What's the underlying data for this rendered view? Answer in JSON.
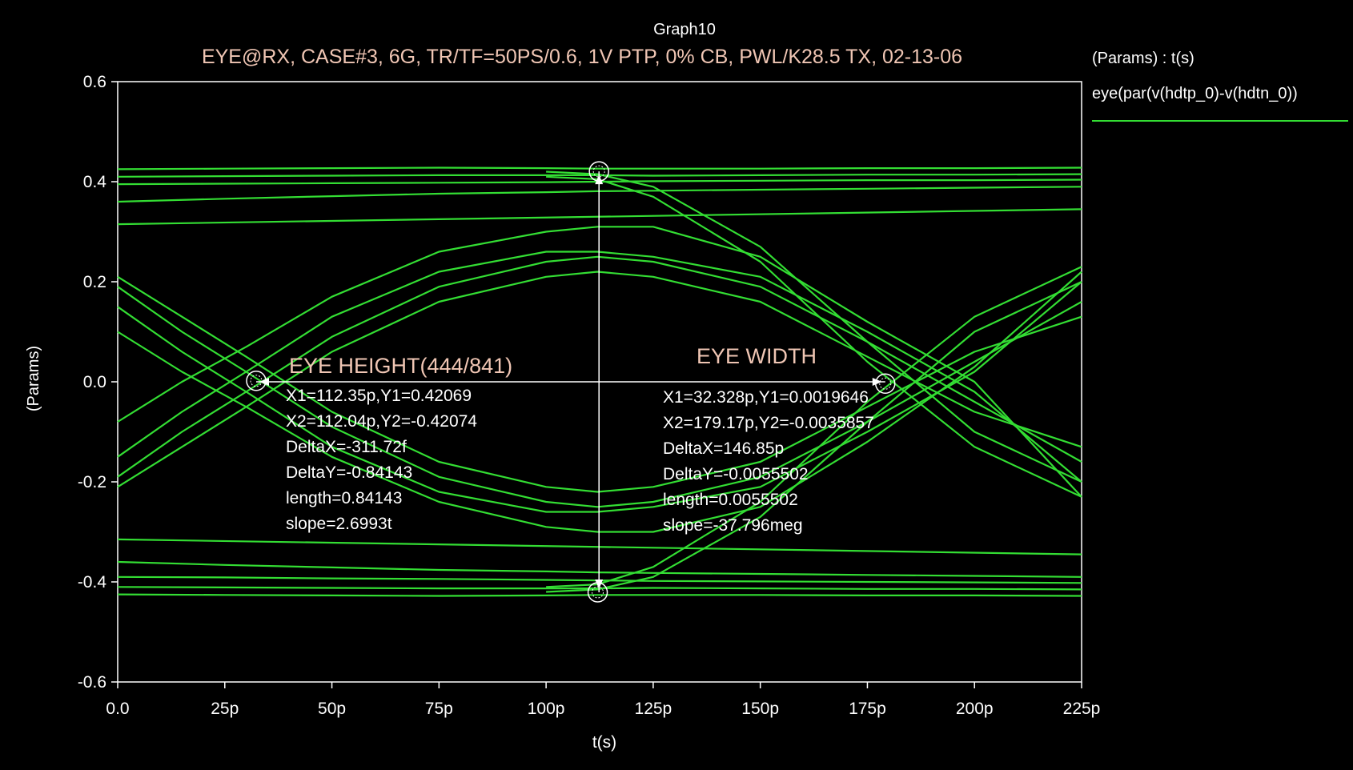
{
  "window": {
    "graph_name": "Graph10"
  },
  "chart_data": {
    "type": "line",
    "title": "EYE@RX, CASE#3, 6G, TR/TF=50PS/0.6, 1V PTP, 0% CB, PWL/K28.5 TX, 02-13-06",
    "xlabel": "t(s)",
    "ylabel": "(Params)",
    "xlim": [
      0,
      225
    ],
    "ylim": [
      -0.6,
      0.6
    ],
    "x_unit": "ps",
    "x_ticks": [
      {
        "value": 0,
        "label": "0.0"
      },
      {
        "value": 25,
        "label": "25p"
      },
      {
        "value": 50,
        "label": "50p"
      },
      {
        "value": 75,
        "label": "75p"
      },
      {
        "value": 100,
        "label": "100p"
      },
      {
        "value": 125,
        "label": "125p"
      },
      {
        "value": 150,
        "label": "150p"
      },
      {
        "value": 175,
        "label": "175p"
      },
      {
        "value": 200,
        "label": "200p"
      },
      {
        "value": 225,
        "label": "225p"
      }
    ],
    "y_ticks": [
      {
        "value": 0.6,
        "label": "0.6"
      },
      {
        "value": 0.4,
        "label": "0.4"
      },
      {
        "value": 0.2,
        "label": "0.2"
      },
      {
        "value": 0.0,
        "label": "0.0"
      },
      {
        "value": -0.2,
        "label": "-0.2"
      },
      {
        "value": -0.4,
        "label": "-0.4"
      },
      {
        "value": -0.6,
        "label": "-0.6"
      }
    ],
    "legend": {
      "header": "(Params) : t(s)",
      "entries": [
        {
          "name": "eye(par(v(hdtp_0)-v(hdtn_0))",
          "color": "#33dd33"
        }
      ],
      "placement": "right"
    },
    "trace_color": "#33dd33",
    "series": [
      {
        "x": [
          0,
          25,
          50,
          75,
          100,
          112,
          125,
          150,
          175,
          200,
          225
        ],
        "y": [
          0.425,
          0.426,
          0.427,
          0.428,
          0.427,
          0.426,
          0.426,
          0.426,
          0.427,
          0.427,
          0.428
        ]
      },
      {
        "x": [
          0,
          25,
          50,
          75,
          100,
          112,
          125,
          150,
          175,
          200,
          225
        ],
        "y": [
          0.41,
          0.411,
          0.412,
          0.413,
          0.413,
          0.413,
          0.412,
          0.413,
          0.414,
          0.414,
          0.415
        ]
      },
      {
        "x": [
          0,
          25,
          50,
          75,
          100,
          112,
          125,
          150,
          175,
          200,
          225
        ],
        "y": [
          0.395,
          0.396,
          0.397,
          0.398,
          0.399,
          0.4,
          0.401,
          0.402,
          0.403,
          0.403,
          0.404
        ]
      },
      {
        "x": [
          0,
          25,
          50,
          75,
          100,
          112,
          125,
          150,
          175,
          200,
          225
        ],
        "y": [
          0.36,
          0.366,
          0.371,
          0.376,
          0.379,
          0.381,
          0.382,
          0.384,
          0.386,
          0.388,
          0.39
        ]
      },
      {
        "x": [
          0,
          225
        ],
        "y": [
          0.315,
          0.345
        ]
      },
      {
        "x": [
          0,
          225
        ],
        "y": [
          -0.315,
          -0.345
        ]
      },
      {
        "x": [
          0,
          25,
          50,
          75,
          100,
          112,
          125,
          150,
          175,
          200,
          225
        ],
        "y": [
          -0.36,
          -0.366,
          -0.371,
          -0.376,
          -0.379,
          -0.381,
          -0.382,
          -0.384,
          -0.386,
          -0.388,
          -0.39
        ]
      },
      {
        "x": [
          0,
          25,
          50,
          75,
          100,
          112,
          125,
          150,
          175,
          200,
          225
        ],
        "y": [
          -0.39,
          -0.391,
          -0.393,
          -0.394,
          -0.396,
          -0.397,
          -0.398,
          -0.399,
          -0.4,
          -0.401,
          -0.402
        ]
      },
      {
        "x": [
          0,
          25,
          50,
          75,
          100,
          112,
          125,
          150,
          175,
          200,
          225
        ],
        "y": [
          -0.41,
          -0.411,
          -0.412,
          -0.413,
          -0.413,
          -0.413,
          -0.412,
          -0.413,
          -0.414,
          -0.414,
          -0.415
        ]
      },
      {
        "x": [
          0,
          25,
          50,
          75,
          100,
          112,
          125,
          150,
          175,
          200,
          225
        ],
        "y": [
          -0.425,
          -0.426,
          -0.427,
          -0.428,
          -0.427,
          -0.426,
          -0.426,
          -0.426,
          -0.427,
          -0.427,
          -0.428
        ]
      },
      {
        "x": [
          0,
          15,
          30,
          50,
          75,
          100,
          112,
          125,
          150,
          175,
          200,
          225
        ],
        "y": [
          -0.21,
          -0.13,
          -0.05,
          0.06,
          0.16,
          0.21,
          0.22,
          0.21,
          0.16,
          0.05,
          -0.06,
          -0.13
        ]
      },
      {
        "x": [
          0,
          15,
          30,
          50,
          75,
          100,
          112,
          125,
          150,
          175,
          200,
          225
        ],
        "y": [
          -0.19,
          -0.1,
          -0.02,
          0.09,
          0.19,
          0.24,
          0.25,
          0.24,
          0.19,
          0.08,
          -0.04,
          -0.16
        ]
      },
      {
        "x": [
          0,
          15,
          30,
          50,
          75,
          100,
          112,
          125,
          150,
          175,
          200,
          225
        ],
        "y": [
          -0.15,
          -0.06,
          0.02,
          0.13,
          0.22,
          0.26,
          0.26,
          0.25,
          0.21,
          0.1,
          -0.02,
          -0.2
        ]
      },
      {
        "x": [
          0,
          15,
          30,
          50,
          75,
          100,
          112,
          125,
          150,
          175,
          200,
          225
        ],
        "y": [
          -0.08,
          0.0,
          0.07,
          0.17,
          0.26,
          0.3,
          0.31,
          0.31,
          0.25,
          0.12,
          0.0,
          -0.23
        ]
      },
      {
        "x": [
          0,
          15,
          30,
          50,
          75,
          100,
          112,
          125,
          150,
          175,
          200,
          225
        ],
        "y": [
          0.21,
          0.13,
          0.05,
          -0.06,
          -0.16,
          -0.21,
          -0.22,
          -0.21,
          -0.16,
          -0.05,
          0.06,
          0.13
        ]
      },
      {
        "x": [
          0,
          15,
          30,
          50,
          75,
          100,
          112,
          125,
          150,
          175,
          200,
          225
        ],
        "y": [
          0.19,
          0.1,
          0.02,
          -0.09,
          -0.19,
          -0.24,
          -0.25,
          -0.24,
          -0.19,
          -0.08,
          0.04,
          0.16
        ]
      },
      {
        "x": [
          0,
          15,
          30,
          50,
          75,
          100,
          112,
          125,
          150,
          175,
          200,
          225
        ],
        "y": [
          0.15,
          0.06,
          -0.02,
          -0.13,
          -0.22,
          -0.26,
          -0.26,
          -0.25,
          -0.21,
          -0.1,
          0.02,
          0.2
        ]
      },
      {
        "x": [
          0,
          15,
          30,
          50,
          75,
          100,
          112,
          125,
          150,
          175,
          200,
          225
        ],
        "y": [
          0.1,
          0.02,
          -0.05,
          -0.15,
          -0.24,
          -0.29,
          -0.3,
          -0.3,
          -0.25,
          -0.12,
          0.03,
          0.22
        ]
      },
      {
        "x": [
          100,
          112,
          125,
          150,
          175,
          200,
          225
        ],
        "y": [
          0.42,
          0.415,
          0.39,
          0.27,
          0.08,
          -0.1,
          -0.2
        ]
      },
      {
        "x": [
          100,
          112,
          125,
          150,
          175,
          200,
          225
        ],
        "y": [
          0.41,
          0.405,
          0.37,
          0.24,
          0.04,
          -0.13,
          -0.23
        ]
      },
      {
        "x": [
          100,
          112,
          125,
          150,
          175,
          200,
          225
        ],
        "y": [
          -0.42,
          -0.415,
          -0.39,
          -0.27,
          -0.08,
          0.1,
          0.2
        ]
      },
      {
        "x": [
          100,
          112,
          125,
          150,
          175,
          200,
          225
        ],
        "y": [
          -0.41,
          -0.405,
          -0.37,
          -0.24,
          -0.04,
          0.13,
          0.23
        ]
      }
    ],
    "markers": [
      {
        "x": 32.328,
        "y": 0.0019646
      },
      {
        "x": 179.17,
        "y": -0.0035857
      },
      {
        "x": 112.35,
        "y": 0.42069
      },
      {
        "x": 112.04,
        "y": -0.42074
      }
    ],
    "measurements": [
      {
        "title": "EYE HEIGHT(444/841)",
        "lines": [
          "X1=112.35p,Y1=0.42069",
          "X2=112.04p,Y2=-0.42074",
          "DeltaX=-311.72f",
          "DeltaY=-0.84143",
          "length=0.84143",
          "slope=2.6993t"
        ]
      },
      {
        "title": "EYE WIDTH",
        "lines": [
          "X1=32.328p,Y1=0.0019646",
          "X2=179.17p,Y2=-0.0035857",
          "DeltaX=146.85p",
          "DeltaY=-0.0055502",
          "length=0.0055502",
          "slope=-37.796meg"
        ]
      }
    ],
    "grid": false
  }
}
